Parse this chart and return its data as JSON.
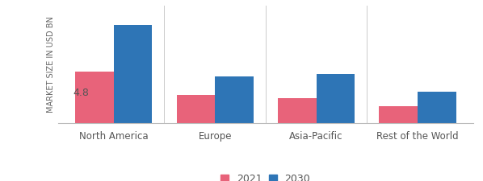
{
  "categories": [
    "North America",
    "Europe",
    "Asia-Pacific",
    "Rest of the World"
  ],
  "values_2021": [
    4.8,
    2.6,
    2.3,
    1.6
  ],
  "values_2030": [
    9.2,
    4.4,
    4.6,
    2.9
  ],
  "color_2021": "#e8637a",
  "color_2030": "#2e75b6",
  "ylabel": "MARKET SIZE IN USD BN",
  "annotation_text": "4.8",
  "annotation_fontsize": 9,
  "legend_labels": [
    "2021",
    "2030"
  ],
  "bar_width": 0.38,
  "ylim": [
    0,
    11
  ],
  "background_color": "#ffffff",
  "tick_label_fontsize": 8.5,
  "ylabel_fontsize": 7.0,
  "legend_fontsize": 9
}
